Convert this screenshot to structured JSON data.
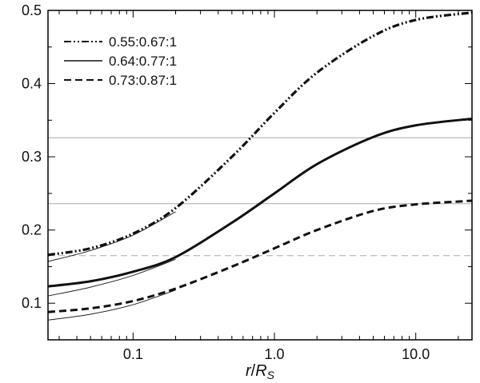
{
  "chart_data": {
    "type": "line",
    "title": "",
    "xlabel": {
      "main": "r",
      "sep": "/",
      "denom": "R",
      "sub": "S"
    },
    "ylabel": "",
    "x_scale": "log",
    "xlim": [
      0.025,
      25
    ],
    "ylim": [
      0.05,
      0.5
    ],
    "x_ticks": [
      {
        "value": 0.1,
        "label": "0.1"
      },
      {
        "value": 1.0,
        "label": "1.0"
      },
      {
        "value": 10.0,
        "label": "10.0"
      }
    ],
    "y_ticks": [
      {
        "value": 0.1,
        "label": "0.1"
      },
      {
        "value": 0.2,
        "label": "0.2"
      },
      {
        "value": 0.3,
        "label": "0.3"
      },
      {
        "value": 0.4,
        "label": "0.4"
      },
      {
        "value": 0.5,
        "label": "0.5"
      }
    ],
    "legend_position": "top-left",
    "reference_lines": [
      {
        "y": 0.326,
        "style": "solid",
        "color": "#aaaaaa"
      },
      {
        "y": 0.236,
        "style": "solid",
        "color": "#aaaaaa"
      },
      {
        "y": 0.165,
        "style": "dashed",
        "color": "#aaaaaa"
      }
    ],
    "series": [
      {
        "name": "0.55:0.67:1",
        "style": "dashdotdot",
        "x": [
          0.025,
          0.05,
          0.1,
          0.2,
          0.5,
          1.0,
          2.0,
          5.0,
          10.0,
          25.0
        ],
        "y": [
          0.166,
          0.175,
          0.195,
          0.23,
          0.3,
          0.36,
          0.415,
          0.465,
          0.487,
          0.497
        ]
      },
      {
        "name": "0.64:0.77:1",
        "style": "solid",
        "x": [
          0.025,
          0.05,
          0.1,
          0.2,
          0.5,
          1.0,
          2.0,
          5.0,
          10.0,
          25.0
        ],
        "y": [
          0.123,
          0.13,
          0.143,
          0.163,
          0.21,
          0.25,
          0.29,
          0.327,
          0.343,
          0.352
        ]
      },
      {
        "name": "0.73:0.87:1",
        "style": "dashed",
        "x": [
          0.025,
          0.05,
          0.1,
          0.2,
          0.5,
          1.0,
          2.0,
          5.0,
          10.0,
          25.0
        ],
        "y": [
          0.088,
          0.093,
          0.103,
          0.12,
          0.15,
          0.175,
          0.2,
          0.226,
          0.235,
          0.24
        ]
      }
    ],
    "thin_series": [
      {
        "style": "thin-solid",
        "x": [
          0.025,
          0.05,
          0.1,
          0.2
        ],
        "y": [
          0.157,
          0.172,
          0.193,
          0.225
        ]
      },
      {
        "style": "thin-solid",
        "x": [
          0.025,
          0.05,
          0.1,
          0.2
        ],
        "y": [
          0.11,
          0.122,
          0.138,
          0.16
        ]
      },
      {
        "style": "thin-solid",
        "x": [
          0.025,
          0.05,
          0.1,
          0.2
        ],
        "y": [
          0.077,
          0.085,
          0.098,
          0.118
        ]
      }
    ]
  }
}
